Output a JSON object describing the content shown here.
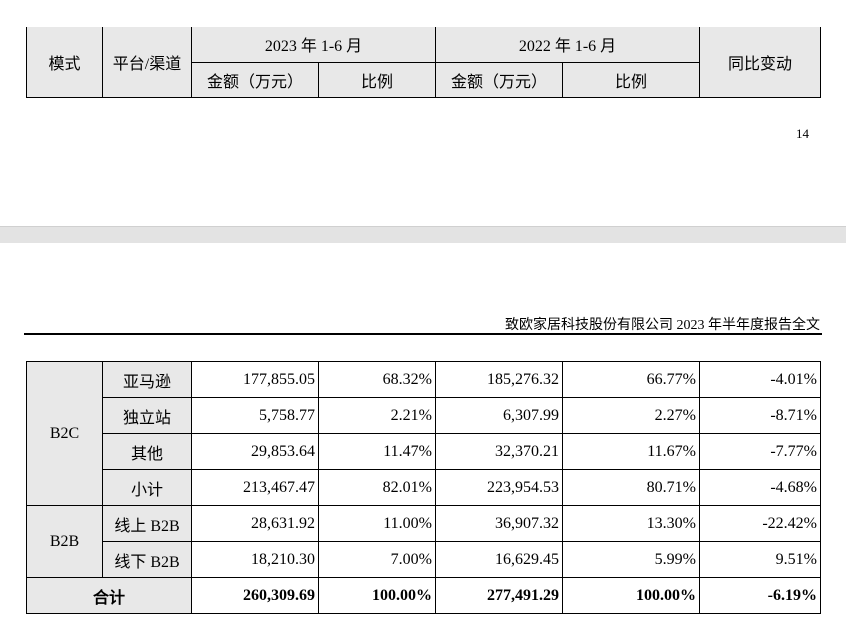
{
  "header": {
    "mode": "模式",
    "platform": "平台/渠道",
    "period_2023": "2023 年 1-6 月",
    "period_2022": "2022 年 1-6 月",
    "yoy": "同比变动",
    "amount": "金额（万元）",
    "ratio": "比例"
  },
  "page_number": "14",
  "report_title": "致欧家居科技股份有限公司 2023 年半年度报告全文",
  "groups": {
    "b2c": "B2C",
    "b2b": "B2B"
  },
  "rows": [
    {
      "channel": "亚马逊",
      "amt2023": "177,855.05",
      "ratio2023": "68.32%",
      "amt2022": "185,276.32",
      "ratio2022": "66.77%",
      "yoy": "-4.01%"
    },
    {
      "channel": "独立站",
      "amt2023": "5,758.77",
      "ratio2023": "2.21%",
      "amt2022": "6,307.99",
      "ratio2022": "2.27%",
      "yoy": "-8.71%"
    },
    {
      "channel": "其他",
      "amt2023": "29,853.64",
      "ratio2023": "11.47%",
      "amt2022": "32,370.21",
      "ratio2022": "11.67%",
      "yoy": "-7.77%"
    },
    {
      "channel": "小计",
      "amt2023": "213,467.47",
      "ratio2023": "82.01%",
      "amt2022": "223,954.53",
      "ratio2022": "80.71%",
      "yoy": "-4.68%"
    },
    {
      "channel": "线上 B2B",
      "amt2023": "28,631.92",
      "ratio2023": "11.00%",
      "amt2022": "36,907.32",
      "ratio2022": "13.30%",
      "yoy": "-22.42%"
    },
    {
      "channel": "线下 B2B",
      "amt2023": "18,210.30",
      "ratio2023": "7.00%",
      "amt2022": "16,629.45",
      "ratio2022": "5.99%",
      "yoy": "9.51%"
    }
  ],
  "total": {
    "label": "合计",
    "amt2023": "260,309.69",
    "ratio2023": "100.00%",
    "amt2022": "277,491.29",
    "ratio2022": "100.00%",
    "yoy": "-6.19%"
  }
}
